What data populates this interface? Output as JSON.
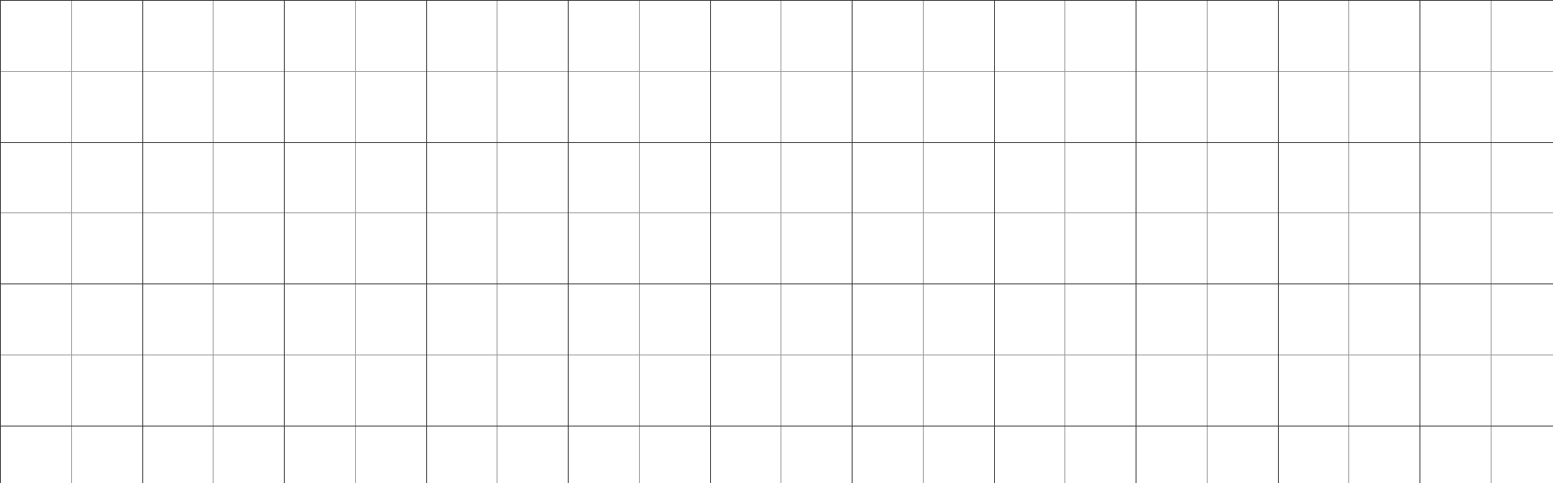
{
  "canvas": {
    "background_color": "#ffffff",
    "grid": {
      "visible": true,
      "major_line_color": "#333333",
      "minor_line_color": "#999999",
      "subdivisions_per_major_cell": 2
    }
  }
}
